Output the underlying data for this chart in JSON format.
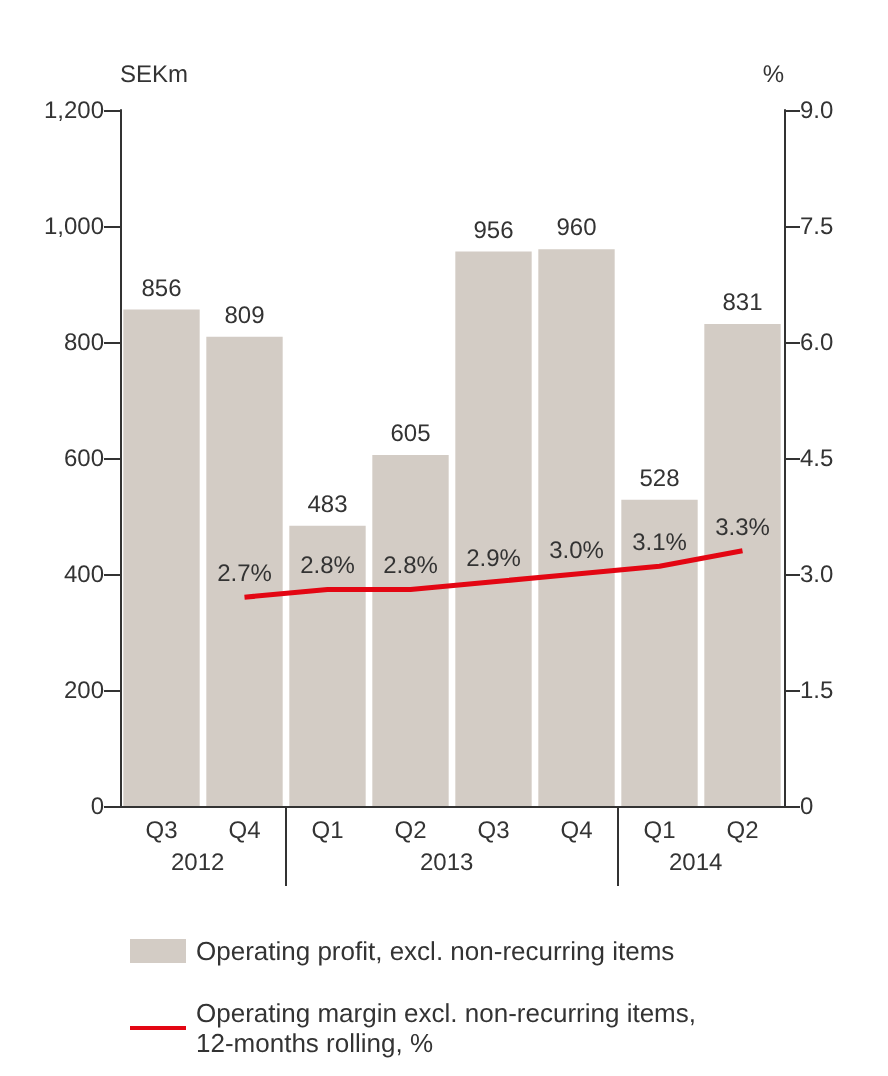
{
  "chart_data": {
    "type": "bar",
    "ylabel": "SEKm",
    "y2label": "%",
    "categories": [
      "Q3",
      "Q4",
      "Q1",
      "Q2",
      "Q3",
      "Q4",
      "Q1",
      "Q2"
    ],
    "series": [
      {
        "name": "Operating profit, excl. non-recurring items",
        "color": "#d3ccc5",
        "values": [
          856,
          809,
          483,
          605,
          956,
          960,
          528,
          831
        ]
      },
      {
        "name": "Operating margin excl. non-recurring items, 12-months rolling, %",
        "type": "line",
        "axis": "y2",
        "color": "#e30613",
        "values": [
          null,
          2.7,
          2.8,
          2.8,
          2.9,
          3.0,
          3.1,
          3.3
        ],
        "value_labels": [
          null,
          "2.7%",
          "2.8%",
          "2.8%",
          "2.9%",
          "3.0%",
          "3.1%",
          "3.3%"
        ]
      }
    ],
    "ylim": [
      0,
      1200
    ],
    "yticks": [
      0,
      200,
      400,
      600,
      800,
      {
        "value": 1000,
        "label": "1,000"
      },
      {
        "value": 1200,
        "label": "1,200"
      }
    ],
    "y2lim": [
      0,
      9
    ],
    "y2ticks": [
      0,
      {
        "value": 1.5,
        "label": "1.5"
      },
      {
        "value": 3,
        "label": "3.0"
      },
      {
        "value": 4.5,
        "label": "4.5"
      },
      {
        "value": 6,
        "label": "6.0"
      },
      {
        "value": 7.5,
        "label": "7.5"
      },
      {
        "value": 9,
        "label": "9.0"
      }
    ],
    "annotations": [
      "2012",
      "2013",
      "2014"
    ],
    "data_labels": true,
    "grid": false,
    "legend": "bottom",
    "marker": "none",
    "line_style": "solid"
  }
}
